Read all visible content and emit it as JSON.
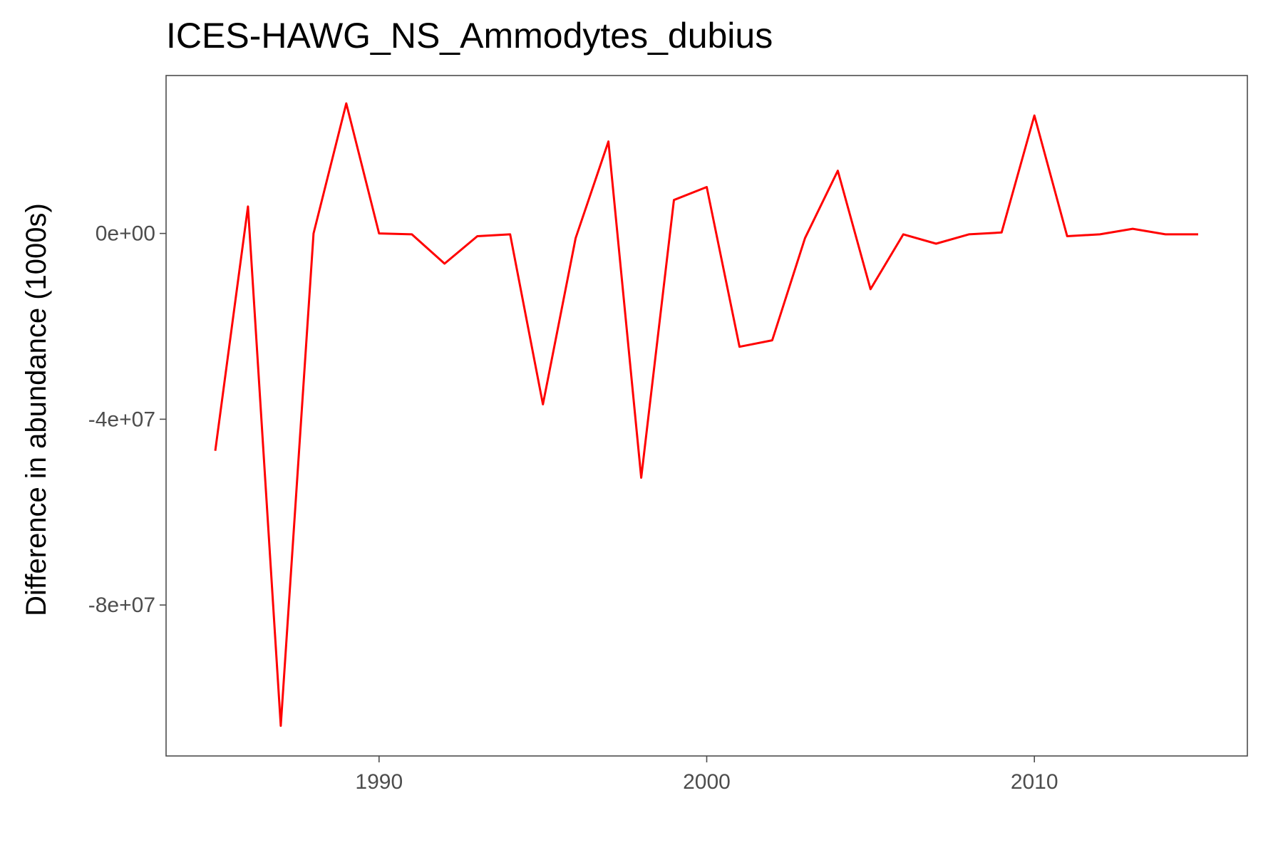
{
  "chart_data": {
    "type": "line",
    "title": "ICES-HAWG_NS_Ammodytes_dubius",
    "xlabel": "",
    "ylabel": "Difference in abundance (1000s)",
    "xlim": [
      1983.5,
      2016.5
    ],
    "ylim": [
      -112500000,
      34000000
    ],
    "x_ticks": [
      1990,
      2000,
      2010
    ],
    "x_tick_labels": [
      "1990",
      "2000",
      "2010"
    ],
    "y_ticks": [
      0,
      -40000000,
      -80000000
    ],
    "y_tick_labels": [
      "0e+00",
      "-4e+07",
      "-8e+07"
    ],
    "grid": false,
    "series": [
      {
        "color": "#ff0000",
        "x": [
          1985,
          1986,
          1987,
          1988,
          1989,
          1990,
          1991,
          1992,
          1993,
          1994,
          1995,
          1996,
          1997,
          1998,
          1999,
          2000,
          2001,
          2002,
          2003,
          2004,
          2005,
          2006,
          2007,
          2008,
          2009,
          2010,
          2011,
          2012,
          2013,
          2014,
          2015
        ],
        "y": [
          -46800000,
          5800000,
          -106000000,
          0,
          28000000,
          0,
          -200000,
          -6500000,
          -600000,
          -200000,
          -36800000,
          -1000000,
          19800000,
          -52600000,
          7200000,
          10000000,
          -24400000,
          -23000000,
          -1000000,
          13500000,
          -12000000,
          -200000,
          -2200000,
          -200000,
          200000,
          25400000,
          -600000,
          -200000,
          1000000,
          -200000,
          -200000
        ]
      }
    ]
  }
}
